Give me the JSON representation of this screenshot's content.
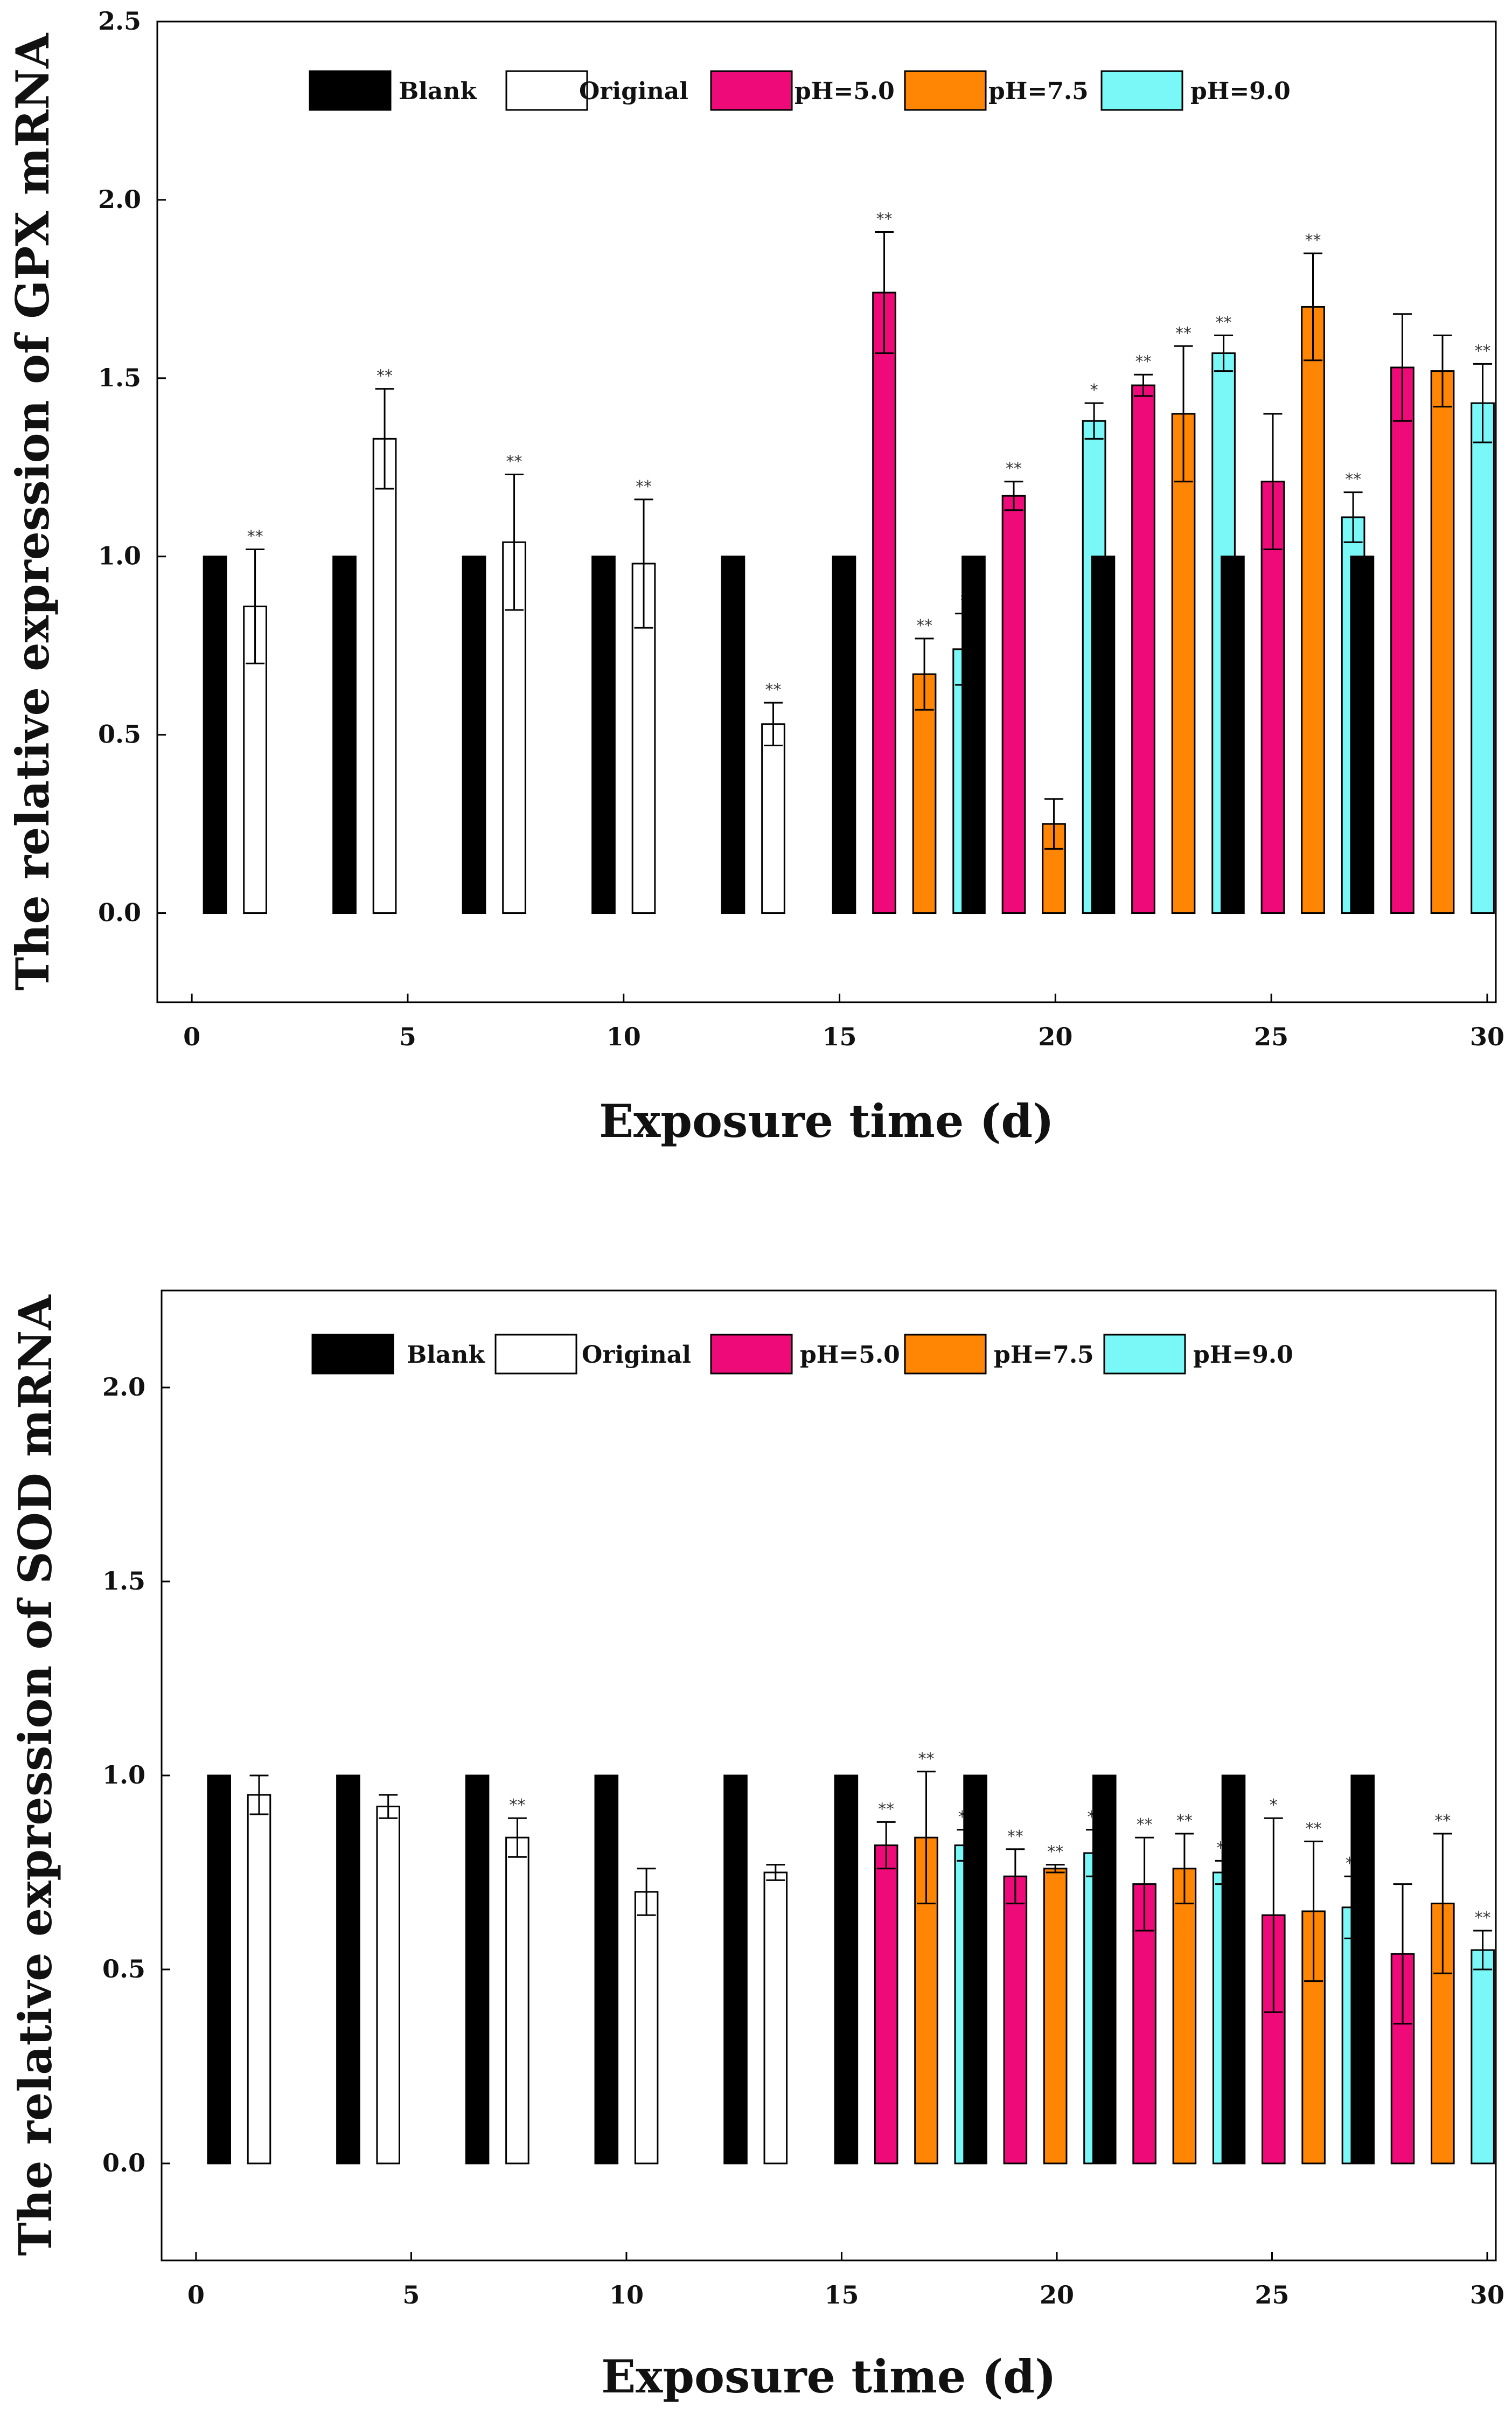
{
  "chart_data": [
    {
      "type": "bar",
      "xlabel": "Exposure time (d)",
      "ylabel": "The relative expression of GPX mRNA",
      "ylim": [
        -0.25,
        2.5
      ],
      "yticks": [
        "0.0",
        "0.5",
        "1.0",
        "1.5",
        "2.0",
        "2.5"
      ],
      "xlim": [
        -0.8,
        30.2
      ],
      "xticks": [
        "0",
        "5",
        "10",
        "15",
        "20",
        "25",
        "30"
      ],
      "legend": [
        "Blank",
        "Original",
        "pH=5.0",
        "pH=7.5",
        "pH=9.0"
      ],
      "colors": {
        "Blank": "#000000",
        "Original": "#ffffff",
        "pH=5.0": "#ee0a78",
        "pH=7.5": "#ff8505",
        "pH=9.0": "#7af7f7"
      },
      "groups": [
        {
          "bars": [
            {
              "series": "Blank",
              "value": 1.0
            },
            {
              "series": "Original",
              "value": 0.86,
              "err": 0.16,
              "sig": "**"
            }
          ]
        },
        {
          "bars": [
            {
              "series": "Blank",
              "value": 1.0
            },
            {
              "series": "Original",
              "value": 1.33,
              "err": 0.14,
              "sig": "**"
            }
          ]
        },
        {
          "bars": [
            {
              "series": "Blank",
              "value": 1.0
            },
            {
              "series": "Original",
              "value": 1.04,
              "err": 0.19,
              "sig": "**"
            }
          ]
        },
        {
          "bars": [
            {
              "series": "Blank",
              "value": 1.0
            },
            {
              "series": "Original",
              "value": 0.98,
              "err": 0.18,
              "sig": "**"
            }
          ]
        },
        {
          "bars": [
            {
              "series": "Blank",
              "value": 1.0
            },
            {
              "series": "Original",
              "value": 0.53,
              "err": 0.06,
              "sig": "**"
            }
          ]
        },
        {
          "bars": [
            {
              "series": "Blank",
              "value": 1.0
            },
            {
              "series": "pH=5.0",
              "value": 1.74,
              "err": 0.17,
              "sig": "**"
            },
            {
              "series": "pH=7.5",
              "value": 0.67,
              "err": 0.1,
              "sig": "**"
            },
            {
              "series": "pH=9.0",
              "value": 0.74,
              "err": 0.1,
              "sig": "*"
            }
          ]
        },
        {
          "bars": [
            {
              "series": "Blank",
              "value": 1.0
            },
            {
              "series": "pH=5.0",
              "value": 1.17,
              "err": 0.04,
              "sig": "**"
            },
            {
              "series": "pH=7.5",
              "value": 0.25,
              "err": 0.07,
              "sig": ""
            },
            {
              "series": "pH=9.0",
              "value": 1.38,
              "err": 0.05,
              "sig": "*"
            }
          ]
        },
        {
          "bars": [
            {
              "series": "Blank",
              "value": 1.0
            },
            {
              "series": "pH=5.0",
              "value": 1.48,
              "err": 0.03,
              "sig": "**"
            },
            {
              "series": "pH=7.5",
              "value": 1.4,
              "err": 0.19,
              "sig": "**"
            },
            {
              "series": "pH=9.0",
              "value": 1.57,
              "err": 0.05,
              "sig": "**"
            }
          ]
        },
        {
          "bars": [
            {
              "series": "Blank",
              "value": 1.0
            },
            {
              "series": "pH=5.0",
              "value": 1.21,
              "err": 0.19,
              "sig": ""
            },
            {
              "series": "pH=7.5",
              "value": 1.7,
              "err": 0.15,
              "sig": "**"
            },
            {
              "series": "pH=9.0",
              "value": 1.11,
              "err": 0.07,
              "sig": "**"
            }
          ]
        },
        {
          "bars": [
            {
              "series": "Blank",
              "value": 1.0
            },
            {
              "series": "pH=5.0",
              "value": 1.53,
              "err": 0.15,
              "sig": ""
            },
            {
              "series": "pH=7.5",
              "value": 1.52,
              "err": 0.1,
              "sig": ""
            },
            {
              "series": "pH=9.0",
              "value": 1.43,
              "err": 0.11,
              "sig": "**"
            }
          ]
        }
      ]
    },
    {
      "type": "bar",
      "xlabel": "Exposure time (d)",
      "ylabel": "The relative expression of SOD mRNA",
      "ylim": [
        -0.25,
        2.25
      ],
      "yticks": [
        "0.0",
        "0.5",
        "1.0",
        "1.5",
        "2.0"
      ],
      "xlim": [
        -0.8,
        30.2
      ],
      "xticks": [
        "0",
        "5",
        "10",
        "15",
        "20",
        "25",
        "30"
      ],
      "legend": [
        "Blank",
        "Original",
        "pH=5.0",
        "pH=7.5",
        "pH=9.0"
      ],
      "colors": {
        "Blank": "#000000",
        "Original": "#ffffff",
        "pH=5.0": "#ee0a78",
        "pH=7.5": "#ff8505",
        "pH=9.0": "#7af7f7"
      },
      "groups": [
        {
          "bars": [
            {
              "series": "Blank",
              "value": 1.0
            },
            {
              "series": "Original",
              "value": 0.95,
              "err": 0.05,
              "sig": ""
            }
          ]
        },
        {
          "bars": [
            {
              "series": "Blank",
              "value": 1.0
            },
            {
              "series": "Original",
              "value": 0.92,
              "err": 0.03,
              "sig": ""
            }
          ]
        },
        {
          "bars": [
            {
              "series": "Blank",
              "value": 1.0
            },
            {
              "series": "Original",
              "value": 0.84,
              "err": 0.05,
              "sig": "**"
            }
          ]
        },
        {
          "bars": [
            {
              "series": "Blank",
              "value": 1.0
            },
            {
              "series": "Original",
              "value": 0.7,
              "err": 0.06,
              "sig": ""
            }
          ]
        },
        {
          "bars": [
            {
              "series": "Blank",
              "value": 1.0
            },
            {
              "series": "Original",
              "value": 0.75,
              "err": 0.02,
              "sig": ""
            }
          ]
        },
        {
          "bars": [
            {
              "series": "Blank",
              "value": 1.0
            },
            {
              "series": "pH=5.0",
              "value": 0.82,
              "err": 0.06,
              "sig": "**"
            },
            {
              "series": "pH=7.5",
              "value": 0.84,
              "err": 0.17,
              "sig": "**"
            },
            {
              "series": "pH=9.0",
              "value": 0.82,
              "err": 0.04,
              "sig": "**"
            }
          ]
        },
        {
          "bars": [
            {
              "series": "Blank",
              "value": 1.0
            },
            {
              "series": "pH=5.0",
              "value": 0.74,
              "err": 0.07,
              "sig": "**"
            },
            {
              "series": "pH=7.5",
              "value": 0.76,
              "err": 0.01,
              "sig": "**"
            },
            {
              "series": "pH=9.0",
              "value": 0.8,
              "err": 0.06,
              "sig": "**"
            }
          ]
        },
        {
          "bars": [
            {
              "series": "Blank",
              "value": 1.0
            },
            {
              "series": "pH=5.0",
              "value": 0.72,
              "err": 0.12,
              "sig": "**"
            },
            {
              "series": "pH=7.5",
              "value": 0.76,
              "err": 0.09,
              "sig": "**"
            },
            {
              "series": "pH=9.0",
              "value": 0.75,
              "err": 0.03,
              "sig": "**"
            }
          ]
        },
        {
          "bars": [
            {
              "series": "Blank",
              "value": 1.0
            },
            {
              "series": "pH=5.0",
              "value": 0.64,
              "err": 0.25,
              "sig": "*"
            },
            {
              "series": "pH=7.5",
              "value": 0.65,
              "err": 0.18,
              "sig": "**"
            },
            {
              "series": "pH=9.0",
              "value": 0.66,
              "err": 0.08,
              "sig": "**"
            }
          ]
        },
        {
          "bars": [
            {
              "series": "Blank",
              "value": 1.0
            },
            {
              "series": "pH=5.0",
              "value": 0.54,
              "err": 0.18,
              "sig": ""
            },
            {
              "series": "pH=7.5",
              "value": 0.67,
              "err": 0.18,
              "sig": "**"
            },
            {
              "series": "pH=9.0",
              "value": 0.55,
              "err": 0.05,
              "sig": "**"
            }
          ]
        }
      ]
    }
  ]
}
